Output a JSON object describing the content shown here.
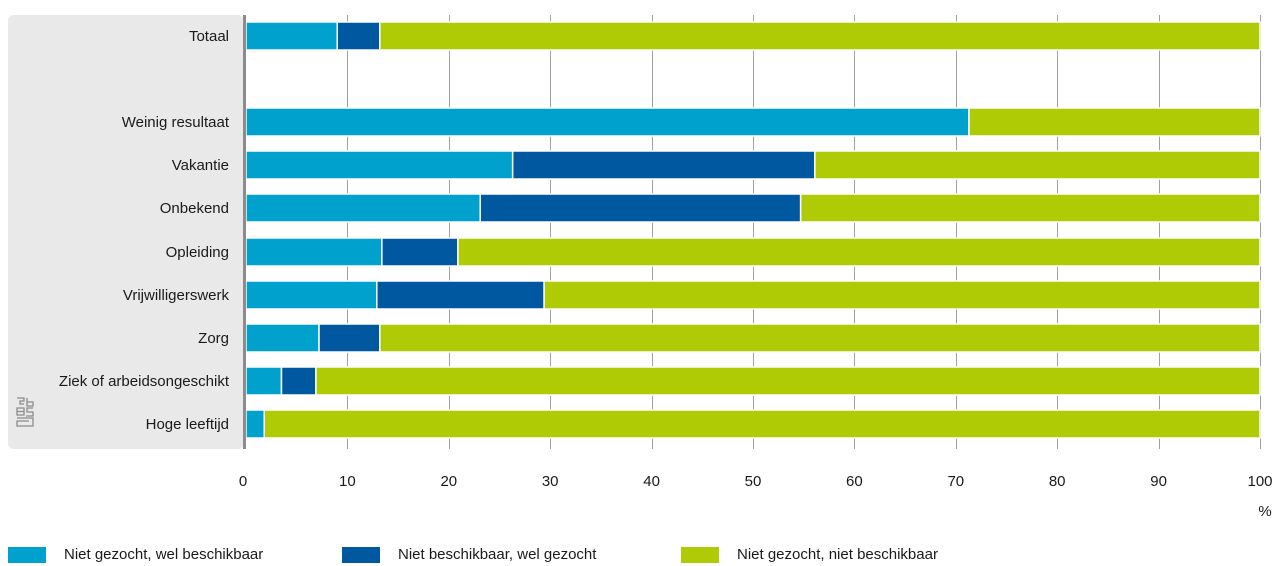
{
  "chart_data": {
    "type": "bar",
    "orientation": "horizontal",
    "stacked": true,
    "categories": [
      "Totaal",
      "Weinig resultaat",
      "Vakantie",
      "Onbekend",
      "Opleiding",
      "Vrijwilligerswerk",
      "Zorg",
      "Ziek of arbeidsongeschikt",
      "Hoge leeftijd"
    ],
    "series": [
      {
        "name": "Niet gezocht, wel beschikbaar",
        "color": "#00a1cd",
        "values": [
          9,
          71.3,
          26.3,
          23.1,
          13.4,
          12.9,
          7.2,
          3.5,
          1.8
        ]
      },
      {
        "name": "Niet beschikbaar, wel gezocht",
        "color": "#0058a0",
        "values": [
          4.2,
          0,
          29.8,
          31.6,
          7.5,
          16.5,
          6.0,
          3.4,
          0
        ]
      },
      {
        "name": "Niet gezocht, niet beschikbaar",
        "color": "#afcb05",
        "values": [
          86.8,
          28.7,
          43.9,
          45.3,
          79.1,
          70.6,
          86.8,
          93.1,
          98.2
        ]
      }
    ],
    "xlim": [
      0,
      100
    ],
    "xticks": [
      0,
      10,
      20,
      30,
      40,
      50,
      60,
      70,
      80,
      90,
      100
    ],
    "xunit": "%",
    "grid": true,
    "legend_position": "bottom"
  },
  "logo": {
    "icon": "cbs-logo-icon"
  }
}
